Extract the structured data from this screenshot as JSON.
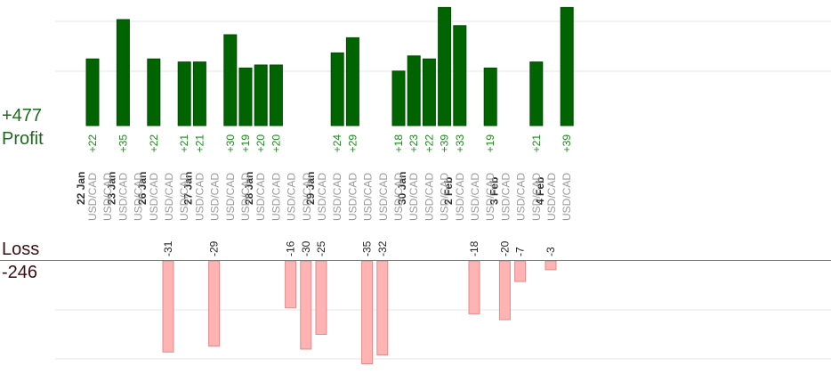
{
  "summary": {
    "profit_total": "+477",
    "profit_label": "Profit",
    "loss_label": "Loss",
    "loss_total": "-246"
  },
  "colors": {
    "profit_bar": "#006400",
    "profit_bar_edge": "#004d00",
    "profit_text": "#1a8a1a",
    "loss_bar": "#ffb3b3",
    "loss_bar_edge": "#e38a8a",
    "grid": "#e6e6e6",
    "axis": "#7a7a7a",
    "symbol_text": "#9a9a9a",
    "date_text": "#333333"
  },
  "chart_data": {
    "type": "bar",
    "grid": true,
    "columns": [
      {
        "date": "22 Jan",
        "symbol": "USD/CAD",
        "profit": 22
      },
      {
        "symbol": "USD/CAD"
      },
      {
        "date": "23 Jan",
        "symbol": "USD/CAD",
        "profit": 35
      },
      {
        "symbol": "USD/CAD"
      },
      {
        "date": "26 Jan",
        "symbol": "USD/CAD",
        "profit": 22
      },
      {
        "symbol": "USD/CAD",
        "loss": -31
      },
      {
        "symbol": "USD/CAD",
        "profit": 21
      },
      {
        "date": "27 Jan",
        "symbol": "USD/CAD",
        "profit": 21
      },
      {
        "symbol": "USD/CAD",
        "loss": -29
      },
      {
        "symbol": "USD/CAD",
        "profit": 30
      },
      {
        "symbol": "USD/CAD",
        "profit": 19
      },
      {
        "date": "28 Jan",
        "symbol": "USD/CAD",
        "profit": 20
      },
      {
        "symbol": "USD/CAD",
        "profit": 20
      },
      {
        "symbol": "USD/CAD",
        "loss": -16
      },
      {
        "symbol": "USD/CAD",
        "loss": -30
      },
      {
        "date": "29 Jan",
        "symbol": "USD/CAD",
        "loss": -25
      },
      {
        "symbol": "USD/CAD",
        "profit": 24
      },
      {
        "symbol": "USD/CAD",
        "profit": 29
      },
      {
        "symbol": "USD/CAD",
        "loss": -35
      },
      {
        "symbol": "USD/CAD",
        "loss": -32
      },
      {
        "symbol": "USD/CAD",
        "profit": 18
      },
      {
        "date": "30 Jan",
        "symbol": "USD/CAD",
        "profit": 23
      },
      {
        "symbol": "USD/CAD",
        "profit": 22
      },
      {
        "symbol": "USD/CAD",
        "profit": 39
      },
      {
        "date": "2 Feb",
        "symbol": "USD/CAD",
        "profit": 33
      },
      {
        "symbol": "USD/CAD",
        "loss": -18
      },
      {
        "symbol": "USD/CAD",
        "profit": 19
      },
      {
        "date": "3 Feb",
        "symbol": "USD/CAD",
        "loss": -20
      },
      {
        "symbol": "USD/CAD",
        "loss": -7
      },
      {
        "symbol": "USD/CAD",
        "profit": 21
      },
      {
        "date": "4 Feb",
        "symbol": "USD/CAD",
        "loss": -3
      },
      {
        "symbol": "USD/CAD",
        "profit": 39
      }
    ]
  }
}
